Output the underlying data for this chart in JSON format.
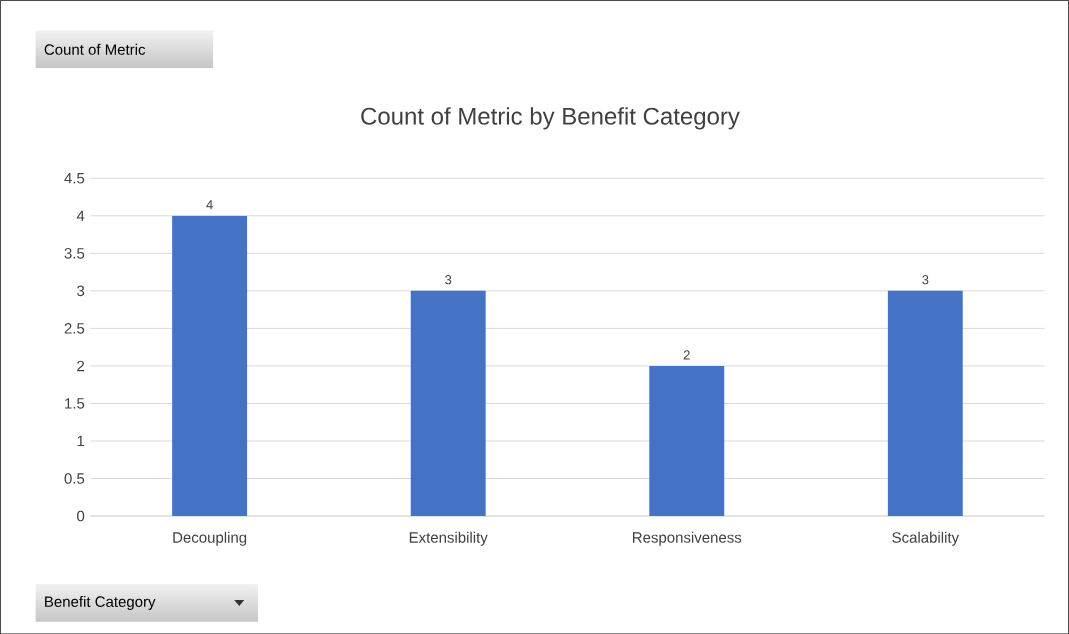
{
  "chart_data": {
    "type": "bar",
    "title": "Count of Metric by Benefit Category",
    "categories": [
      "Decoupling",
      "Extensibility",
      "Responsiveness",
      "Scalability"
    ],
    "values": [
      4,
      3,
      2,
      3
    ],
    "color": "#4472c4",
    "data_labels": true,
    "ylim": [
      0,
      4.5
    ],
    "yticks": [
      0,
      0.5,
      1,
      1.5,
      2,
      2.5,
      3,
      3.5,
      4,
      4.5
    ],
    "grid": "y",
    "annotations": [
      "Count of Metric",
      "Benefit Category"
    ]
  }
}
